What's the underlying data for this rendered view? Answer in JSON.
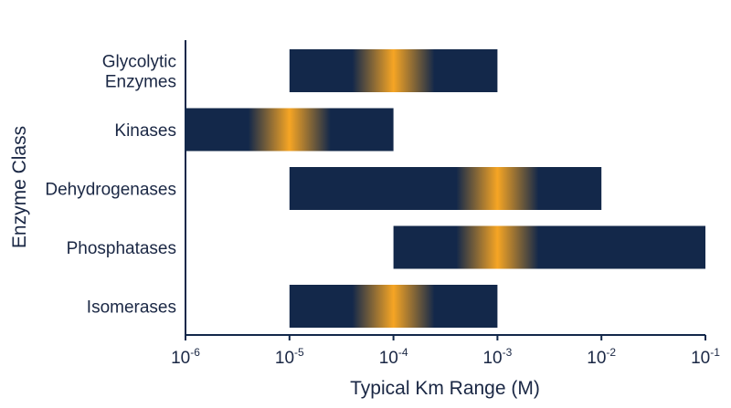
{
  "chart_data": {
    "type": "bar",
    "orientation": "horizontal",
    "subtype": "range",
    "title": "",
    "xlabel": "Typical Km Range (M)",
    "ylabel": "Enzyme Class",
    "xscale": "log",
    "xlim": [
      1e-06,
      0.1
    ],
    "x_ticks": [
      {
        "base": "10",
        "exp": "-6",
        "value": 1e-06
      },
      {
        "base": "10",
        "exp": "-5",
        "value": 1e-05
      },
      {
        "base": "10",
        "exp": "-4",
        "value": 0.0001
      },
      {
        "base": "10",
        "exp": "-3",
        "value": 0.001
      },
      {
        "base": "10",
        "exp": "-2",
        "value": 0.01
      },
      {
        "base": "10",
        "exp": "-1",
        "value": 0.1
      }
    ],
    "categories": [
      {
        "label": [
          "Glycolytic",
          "Enzymes"
        ],
        "low": 1e-05,
        "high": 0.001,
        "peak": 0.0001
      },
      {
        "label": [
          "Kinases"
        ],
        "low": 1e-06,
        "high": 0.0001,
        "peak": 1e-05
      },
      {
        "label": [
          "Dehydrogenases"
        ],
        "low": 1e-05,
        "high": 0.01,
        "peak": 0.001
      },
      {
        "label": [
          "Phosphatases"
        ],
        "low": 0.0001,
        "high": 0.1,
        "peak": 0.001
      },
      {
        "label": [
          "Isomerases"
        ],
        "low": 1e-05,
        "high": 0.001,
        "peak": 0.0001
      }
    ],
    "grid": false,
    "legend": "none",
    "colors": {
      "bar": "#13284a",
      "highlight": "#f6a524",
      "axis": "#13284a",
      "text": "#1a2744"
    }
  }
}
